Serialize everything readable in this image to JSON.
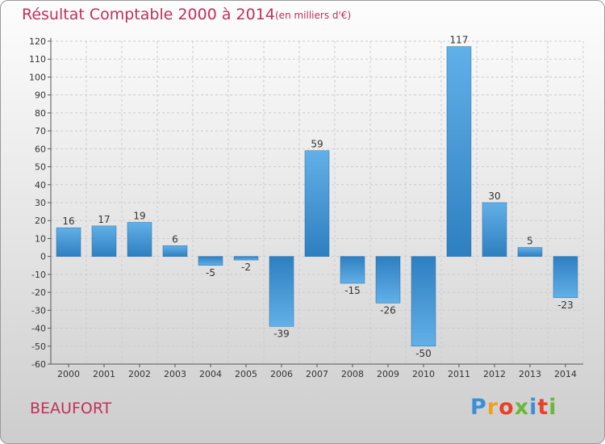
{
  "header": {
    "title": "Résultat Comptable 2000 à 2014",
    "subtitle": "(en milliers d'€)"
  },
  "footer": {
    "commune": "BEAUFORT",
    "logo": [
      "P",
      "r",
      "o",
      "x",
      "i",
      "t",
      "i"
    ],
    "logo_colors": [
      "#3a8fd8",
      "#f0a020",
      "#e8402a",
      "#6ab83a",
      "#3a8fd8",
      "#e8402a",
      "#6ab83a"
    ]
  },
  "colors": {
    "bar_light": "#62b0e8",
    "bar_dark": "#2e7fc0",
    "grid": "#cccccc",
    "axis_text": "#333333"
  },
  "chart_data": {
    "type": "bar",
    "categories": [
      "2000",
      "2001",
      "2002",
      "2003",
      "2004",
      "2005",
      "2006",
      "2007",
      "2008",
      "2009",
      "2010",
      "2011",
      "2012",
      "2013",
      "2014"
    ],
    "values": [
      16,
      17,
      19,
      6,
      -5,
      -2,
      -39,
      59,
      -15,
      -26,
      -50,
      117,
      30,
      5,
      -23
    ],
    "data_labels": [
      "16",
      "17",
      "19",
      "6",
      "-5",
      "-2",
      "-39",
      "59",
      "-15",
      "-26",
      "-50",
      "117",
      "30",
      "5",
      "-23"
    ],
    "yticks": [
      120,
      110,
      100,
      90,
      80,
      70,
      60,
      50,
      40,
      30,
      20,
      10,
      0,
      -10,
      -20,
      -30,
      -40,
      -50,
      -60
    ],
    "ylim": [
      -60,
      120
    ],
    "grid": true
  }
}
